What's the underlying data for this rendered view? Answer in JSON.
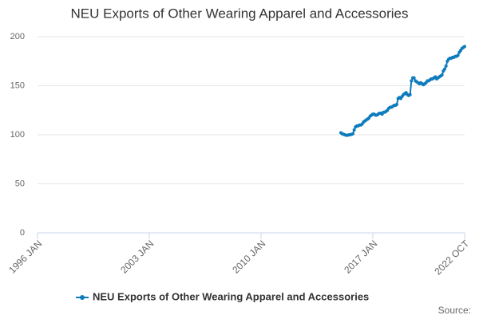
{
  "chart_data": {
    "type": "line",
    "title": "NEU Exports of Other Wearing Apparel and Accessories",
    "source": "Source:",
    "x": [
      "2015-01",
      "2015-02",
      "2015-03",
      "2015-04",
      "2015-05",
      "2015-06",
      "2015-07",
      "2015-08",
      "2015-09",
      "2015-10",
      "2015-11",
      "2015-12",
      "2016-01",
      "2016-02",
      "2016-03",
      "2016-04",
      "2016-05",
      "2016-06",
      "2016-07",
      "2016-08",
      "2016-09",
      "2016-10",
      "2016-11",
      "2016-12",
      "2017-01",
      "2017-02",
      "2017-03",
      "2017-04",
      "2017-05",
      "2017-06",
      "2017-07",
      "2017-08",
      "2017-09",
      "2017-10",
      "2017-11",
      "2017-12",
      "2018-01",
      "2018-02",
      "2018-03",
      "2018-04",
      "2018-05",
      "2018-06",
      "2018-07",
      "2018-08",
      "2018-09",
      "2018-10",
      "2018-11",
      "2018-12",
      "2019-01",
      "2019-02",
      "2019-03",
      "2019-04",
      "2019-05",
      "2019-06",
      "2019-07",
      "2019-08",
      "2019-09",
      "2019-10",
      "2019-11",
      "2019-12",
      "2020-01",
      "2020-02",
      "2020-03",
      "2020-04",
      "2020-05",
      "2020-06",
      "2020-07",
      "2020-08",
      "2020-09",
      "2020-10",
      "2020-11",
      "2020-12",
      "2021-01",
      "2021-02",
      "2021-03",
      "2021-04",
      "2021-05",
      "2021-06",
      "2021-07",
      "2021-08",
      "2021-09",
      "2021-10",
      "2021-11",
      "2021-12",
      "2022-01",
      "2022-02",
      "2022-03",
      "2022-04",
      "2022-05",
      "2022-06",
      "2022-07",
      "2022-08",
      "2022-09",
      "2022-10"
    ],
    "series": [
      {
        "name": "NEU Exports of Other Wearing Apparel and Accessories",
        "color": "#0e7bbd",
        "values": [
          102,
          101,
          100.5,
          100,
          99.5,
          99.5,
          100,
          100,
          100.5,
          101,
          105,
          108,
          109,
          109,
          110,
          110,
          111,
          113,
          114,
          115,
          116,
          117,
          119,
          120,
          121,
          121,
          120,
          120,
          121,
          122,
          122,
          121,
          123,
          123,
          124,
          125,
          127,
          128,
          128,
          129,
          130,
          130,
          131,
          137,
          138,
          137,
          139,
          141,
          142,
          143,
          141,
          140,
          141,
          155,
          158,
          158,
          155,
          154,
          153,
          152,
          153,
          152,
          151,
          152,
          153,
          155,
          155,
          156,
          157,
          157,
          158,
          159,
          157,
          158,
          159,
          160,
          161,
          165,
          167,
          170,
          175,
          177,
          178,
          178,
          179,
          179,
          180,
          180,
          181,
          184,
          186,
          188,
          189,
          190
        ]
      }
    ],
    "xlim": [
      "1996-01",
      "2022-10"
    ],
    "xticks": [
      {
        "value": "1996-01",
        "label": "1996 JAN"
      },
      {
        "value": "2003-01",
        "label": "2003 JAN"
      },
      {
        "value": "2010-01",
        "label": "2010 JAN"
      },
      {
        "value": "2017-01",
        "label": "2017 JAN"
      },
      {
        "value": "2022-10",
        "label": "2022 OCT"
      }
    ],
    "ylim": [
      0,
      200
    ],
    "yticks": [
      0,
      50,
      100,
      150,
      200
    ],
    "grid": true
  }
}
